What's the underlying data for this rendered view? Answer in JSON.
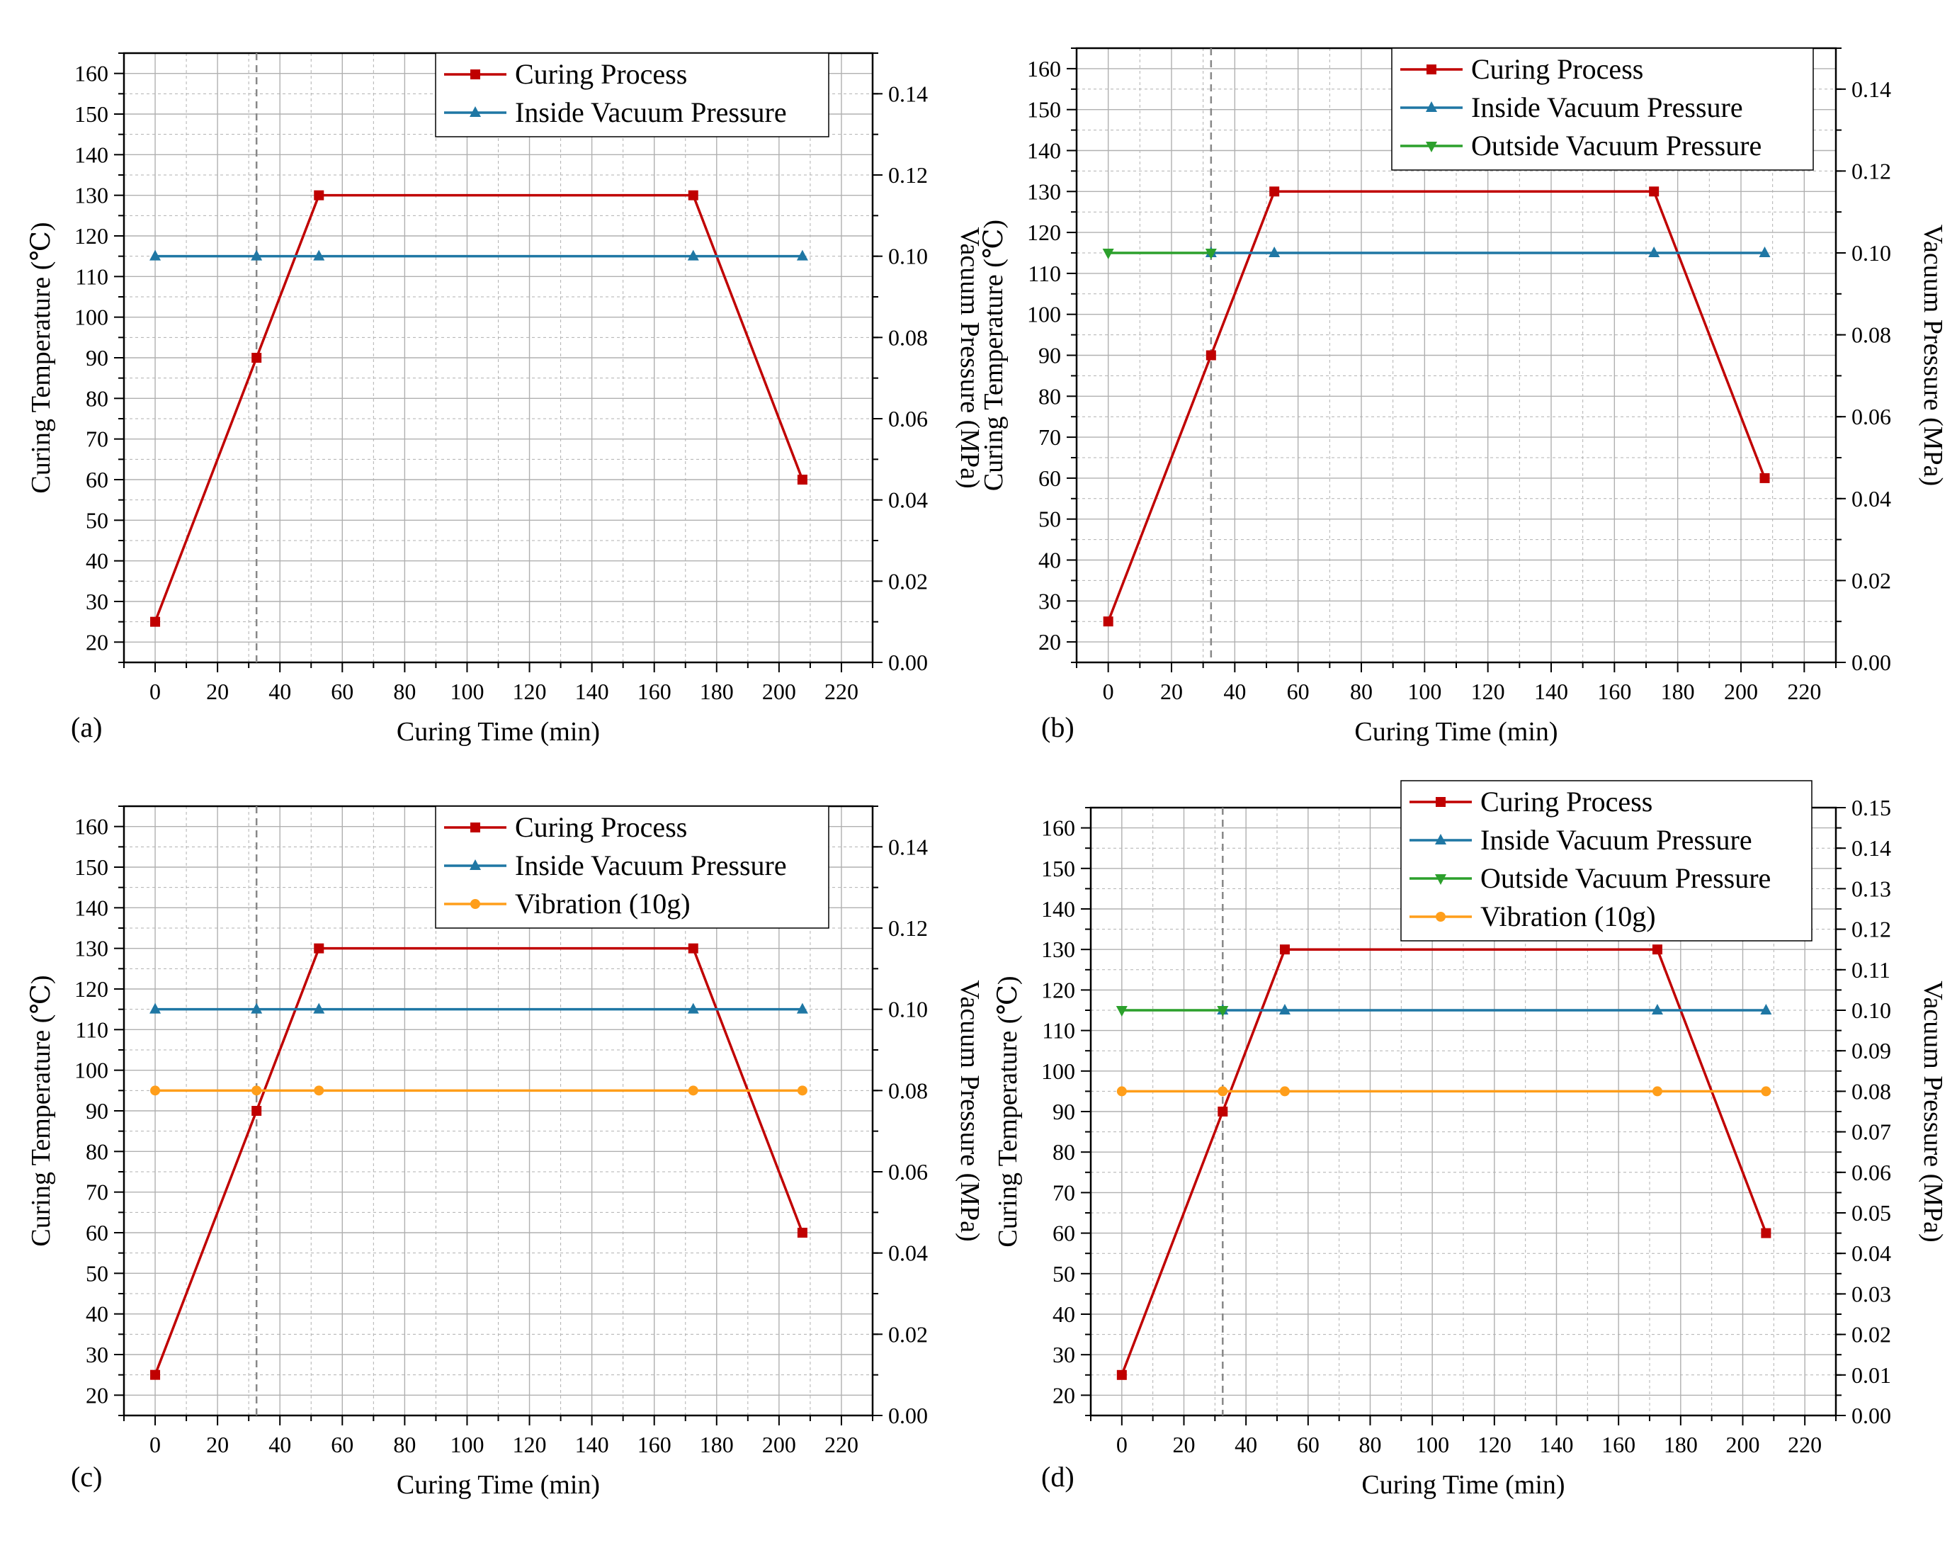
{
  "colors": {
    "curing": "#c00000",
    "inside": "#1f77a4",
    "outside": "#2ca02c",
    "vibration": "#ff9e1a",
    "grid": "#b0b0b0",
    "dashed": "#888888"
  },
  "chart_data": [
    {
      "type": "line",
      "panel_label": "(a)",
      "xlabel": "Curing Time (min)",
      "ylabel": "Curing Temperature (℃)",
      "y2label": "Vacuum Pressure (MPa)",
      "xlim": [
        -10,
        230
      ],
      "ylim": [
        15,
        165
      ],
      "y2lim": [
        0,
        0.15
      ],
      "xticks": [
        "0",
        "20",
        "40",
        "60",
        "80",
        "100",
        "120",
        "140",
        "160",
        "180",
        "200",
        "220"
      ],
      "yticks": [
        "20",
        "30",
        "40",
        "50",
        "60",
        "70",
        "80",
        "90",
        "100",
        "110",
        "120",
        "130",
        "140",
        "150",
        "160"
      ],
      "y2ticks": [
        "0.00",
        "0.02",
        "0.04",
        "0.06",
        "0.08",
        "0.10",
        "0.12",
        "0.14"
      ],
      "dashed_vline_x": 32.5,
      "grid": true,
      "legend_position": "top-right",
      "series": [
        {
          "name": "Curing Process",
          "axis": "left",
          "color": "#c00000",
          "marker": "square",
          "x": [
            0,
            32.5,
            52.5,
            172.5,
            207.5
          ],
          "y": [
            25,
            90,
            130,
            130,
            60
          ]
        },
        {
          "name": "Inside Vacuum Pressure",
          "axis": "right",
          "color": "#1f77a4",
          "marker": "triangle-up",
          "x": [
            0,
            32.5,
            52.5,
            172.5,
            207.5
          ],
          "y": [
            0.1,
            0.1,
            0.1,
            0.1,
            0.1
          ]
        }
      ]
    },
    {
      "type": "line",
      "panel_label": "(b)",
      "xlabel": "Curing Time (min)",
      "ylabel": "Curing Temperature (℃)",
      "y2label": "Vacuum Pressure (MPa)",
      "xlim": [
        -10,
        230
      ],
      "ylim": [
        15,
        165
      ],
      "y2lim": [
        0,
        0.15
      ],
      "xticks": [
        "0",
        "20",
        "40",
        "60",
        "80",
        "100",
        "120",
        "140",
        "160",
        "180",
        "200",
        "220"
      ],
      "yticks": [
        "20",
        "30",
        "40",
        "50",
        "60",
        "70",
        "80",
        "90",
        "100",
        "110",
        "120",
        "130",
        "140",
        "150",
        "160"
      ],
      "y2ticks": [
        "0.00",
        "0.02",
        "0.04",
        "0.06",
        "0.08",
        "0.10",
        "0.12",
        "0.14"
      ],
      "dashed_vline_x": 32.5,
      "grid": true,
      "legend_position": "top-right",
      "series": [
        {
          "name": "Curing Process",
          "axis": "left",
          "color": "#c00000",
          "marker": "square",
          "x": [
            0,
            32.5,
            52.5,
            172.5,
            207.5
          ],
          "y": [
            25,
            90,
            130,
            130,
            60
          ]
        },
        {
          "name": "Inside Vacuum Pressure",
          "axis": "right",
          "color": "#1f77a4",
          "marker": "triangle-up",
          "x": [
            32.5,
            52.5,
            172.5,
            207.5
          ],
          "y": [
            0.1,
            0.1,
            0.1,
            0.1
          ]
        },
        {
          "name": "Outside Vacuum Pressure",
          "axis": "right",
          "color": "#2ca02c",
          "marker": "triangle-down",
          "x": [
            0,
            32.5
          ],
          "y": [
            0.1,
            0.1
          ]
        }
      ]
    },
    {
      "type": "line",
      "panel_label": "(c)",
      "xlabel": "Curing Time (min)",
      "ylabel": "Curing Temperature (℃)",
      "y2label": "Vacuum Pressure (MPa)",
      "xlim": [
        -10,
        230
      ],
      "ylim": [
        15,
        165
      ],
      "y2lim": [
        0,
        0.15
      ],
      "xticks": [
        "0",
        "20",
        "40",
        "60",
        "80",
        "100",
        "120",
        "140",
        "160",
        "180",
        "200",
        "220"
      ],
      "yticks": [
        "20",
        "30",
        "40",
        "50",
        "60",
        "70",
        "80",
        "90",
        "100",
        "110",
        "120",
        "130",
        "140",
        "150",
        "160"
      ],
      "y2ticks": [
        "0.00",
        "0.02",
        "0.04",
        "0.06",
        "0.08",
        "0.10",
        "0.12",
        "0.14"
      ],
      "dashed_vline_x": 32.5,
      "grid": true,
      "legend_position": "top-right",
      "series": [
        {
          "name": "Curing Process",
          "axis": "left",
          "color": "#c00000",
          "marker": "square",
          "x": [
            0,
            32.5,
            52.5,
            172.5,
            207.5
          ],
          "y": [
            25,
            90,
            130,
            130,
            60
          ]
        },
        {
          "name": "Inside Vacuum Pressure",
          "axis": "right",
          "color": "#1f77a4",
          "marker": "triangle-up",
          "x": [
            0,
            32.5,
            52.5,
            172.5,
            207.5
          ],
          "y": [
            0.1,
            0.1,
            0.1,
            0.1,
            0.1
          ]
        },
        {
          "name": "Vibration (10g)",
          "axis": "right",
          "color": "#ff9e1a",
          "marker": "circle",
          "x": [
            0,
            32.5,
            52.5,
            172.5,
            207.5
          ],
          "y": [
            0.08,
            0.08,
            0.08,
            0.08,
            0.08
          ]
        }
      ]
    },
    {
      "type": "line",
      "panel_label": "(d)",
      "xlabel": "Curing Time (min)",
      "ylabel": "Curing Temperature (℃)",
      "y2label": "Vacuum Pressure (MPa)",
      "xlim": [
        -10,
        230
      ],
      "ylim": [
        15,
        165
      ],
      "y2lim": [
        0,
        0.15
      ],
      "xticks": [
        "0",
        "20",
        "40",
        "60",
        "80",
        "100",
        "120",
        "140",
        "160",
        "180",
        "200",
        "220"
      ],
      "yticks": [
        "20",
        "30",
        "40",
        "50",
        "60",
        "70",
        "80",
        "90",
        "100",
        "110",
        "120",
        "130",
        "140",
        "150",
        "160"
      ],
      "y2ticks": [
        "0.00",
        "0.01",
        "0.02",
        "0.03",
        "0.04",
        "0.05",
        "0.06",
        "0.07",
        "0.08",
        "0.09",
        "0.10",
        "0.11",
        "0.12",
        "0.13",
        "0.14",
        "0.15"
      ],
      "dashed_vline_x": 32.5,
      "grid": true,
      "legend_position": "top-right",
      "series": [
        {
          "name": "Curing Process",
          "axis": "left",
          "color": "#c00000",
          "marker": "square",
          "x": [
            0,
            32.5,
            52.5,
            172.5,
            207.5
          ],
          "y": [
            25,
            90,
            130,
            130,
            60
          ]
        },
        {
          "name": "Inside Vacuum Pressure",
          "axis": "right",
          "color": "#1f77a4",
          "marker": "triangle-up",
          "x": [
            32.5,
            52.5,
            172.5,
            207.5
          ],
          "y": [
            0.1,
            0.1,
            0.1,
            0.1
          ]
        },
        {
          "name": "Outside Vacuum Pressure",
          "axis": "right",
          "color": "#2ca02c",
          "marker": "triangle-down",
          "x": [
            0,
            32.5
          ],
          "y": [
            0.1,
            0.1
          ]
        },
        {
          "name": "Vibration (10g)",
          "axis": "right",
          "color": "#ff9e1a",
          "marker": "circle",
          "x": [
            0,
            32.5,
            52.5,
            172.5,
            207.5
          ],
          "y": [
            0.08,
            0.08,
            0.08,
            0.08,
            0.08
          ]
        }
      ]
    }
  ]
}
